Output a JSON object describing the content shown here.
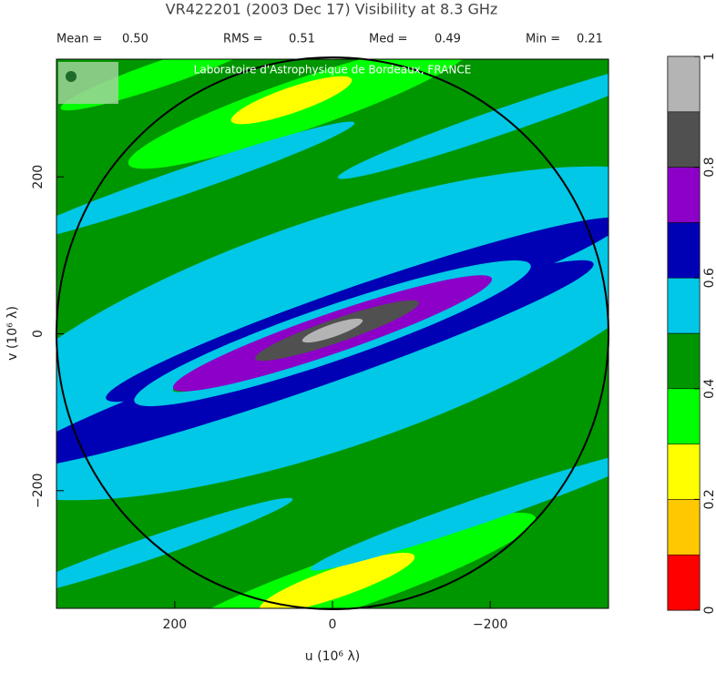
{
  "chart_data": {
    "type": "contour",
    "title": "VR422201   (2003 Dec 17)    Visibility at  8.3 GHz",
    "stats": [
      {
        "label": "Mean =",
        "value": "0.50"
      },
      {
        "label": "RMS =",
        "value": "0.51"
      },
      {
        "label": "Med =",
        "value": "0.49"
      },
      {
        "label": "Min =",
        "value": "0.21"
      }
    ],
    "watermark": "Laboratoire d'Astrophysique de Bordeaux, FRANCE",
    "xlabel": "u   (10⁶ λ)",
    "ylabel": "v   (10⁶ λ)",
    "xlim": [
      350,
      -350
    ],
    "ylim": [
      -350,
      350
    ],
    "xticks": [
      200,
      0,
      {
        "value": -200,
        "label": "−200"
      }
    ],
    "yticks": [
      {
        "value": -200,
        "label": "−200"
      },
      0,
      200
    ],
    "levels": [
      0,
      0.1,
      0.2,
      0.3,
      0.4,
      0.5,
      0.6,
      0.7,
      0.8,
      0.9,
      1
    ],
    "colors": [
      "#ff0000",
      "#ffc800",
      "#ffff00",
      "#00ff00",
      "#009600",
      "#00c8e6",
      "#0000b4",
      "#8c00c8",
      "#505050",
      "#b4b4b4"
    ],
    "cticks": [
      0,
      0.2,
      0.4,
      0.6,
      0.8,
      1
    ]
  }
}
